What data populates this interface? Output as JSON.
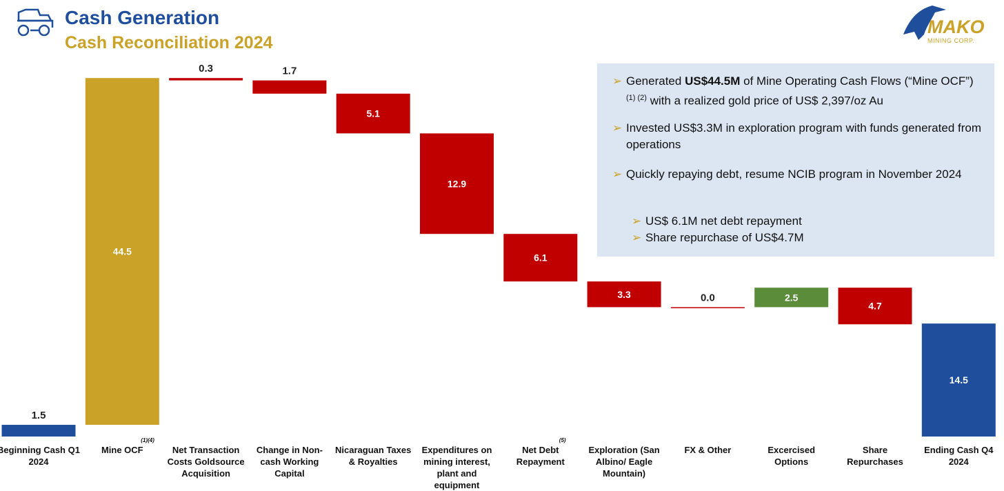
{
  "header": {
    "title": "Cash Generation",
    "subtitle": "Cash Reconciliation 2024"
  },
  "logo": {
    "name": "MAKO",
    "tagline": "MINING CORP."
  },
  "chart_data": {
    "type": "waterfall",
    "categories": [
      "Beginning Cash Q1 2024",
      "Mine OCF",
      "Net Transaction Costs Goldsource Acquisition",
      "Change in Non-cash Working Capital",
      "Nicaraguan Taxes & Royalties",
      "Expenditures on mining interest, plant and equipment",
      "Net Debt Repayment",
      "Exploration (San Albino/ Eagle Mountain)",
      "FX & Other",
      "Excercised Options",
      "Share Repurchases",
      "Ending Cash Q4 2024"
    ],
    "category_notes": [
      null,
      "(1)(4)",
      null,
      null,
      null,
      null,
      "(5)",
      null,
      null,
      null,
      null,
      null
    ],
    "values": [
      1.5,
      44.5,
      -0.3,
      -1.7,
      -5.1,
      -12.9,
      -6.1,
      -3.3,
      0.0,
      2.5,
      -4.7,
      14.5
    ],
    "value_labels": [
      "1.5",
      "44.5",
      "0.3",
      "1.7",
      "5.1",
      "12.9",
      "6.1",
      "3.3",
      "0.0",
      "2.5",
      "4.7",
      "14.5"
    ],
    "measure": [
      "absolute",
      "relative",
      "relative",
      "relative",
      "relative",
      "relative",
      "relative",
      "relative",
      "relative",
      "relative",
      "relative",
      "absolute"
    ],
    "colors": [
      "#1f4e9c",
      "#c9a227",
      "#c00000",
      "#c00000",
      "#c00000",
      "#c00000",
      "#c00000",
      "#c00000",
      "#c00000",
      "#5b8c3a",
      "#c00000",
      "#1f4e9c"
    ]
  },
  "notes": {
    "bullets": [
      [
        "Generated",
        "US$44.5M",
        "of Mine Operating Cash Flows (“Mine OCF”)",
        "(1) (2)",
        "with a realized gold price of US$ 2,397/oz Au"
      ],
      [
        "Invested US$3.3M in exploration program with funds generated from operations"
      ],
      [
        "Quickly repaying debt, resume NCIB program in November 2024"
      ]
    ],
    "sub_bullets": [
      "US$ 6.1M net debt repayment",
      "Share repurchase of US$4.7M"
    ]
  }
}
